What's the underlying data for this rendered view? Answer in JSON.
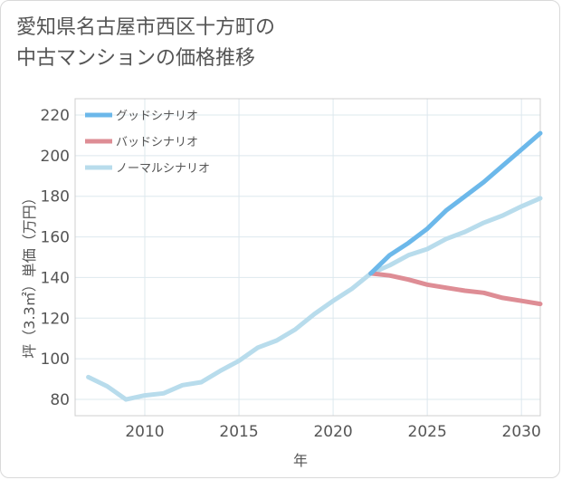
{
  "chart_data": {
    "type": "line",
    "title": "愛知県名古屋市西区十方町の\n中古マンションの価格推移",
    "xlabel": "年",
    "ylabel": "坪（3.3㎡）単価（万円）",
    "xlim": [
      2006.3,
      2031
    ],
    "ylim": [
      72,
      228
    ],
    "xticks": [
      2010,
      2015,
      2020,
      2025,
      2030
    ],
    "yticks": [
      80,
      100,
      120,
      140,
      160,
      180,
      200,
      220
    ],
    "grid": true,
    "legend_position": "top-left",
    "series": [
      {
        "name": "グッドシナリオ",
        "color": "#6cb8ea",
        "x": [
          2022,
          2023,
          2024,
          2025,
          2026,
          2027,
          2028,
          2029,
          2030,
          2031
        ],
        "values": [
          142,
          151,
          157,
          164,
          173,
          180,
          187,
          195,
          203,
          211
        ]
      },
      {
        "name": "バッドシナリオ",
        "color": "#de8d95",
        "x": [
          2022,
          2023,
          2024,
          2025,
          2026,
          2027,
          2028,
          2029,
          2030,
          2031
        ],
        "values": [
          142,
          141,
          139,
          136.5,
          135,
          133.5,
          132.5,
          130,
          128.5,
          127
        ]
      },
      {
        "name": "ノーマルシナリオ",
        "color": "#b8dcec",
        "x": [
          2007,
          2008,
          2009,
          2010,
          2011,
          2012,
          2013,
          2014,
          2015,
          2016,
          2017,
          2018,
          2019,
          2020,
          2021,
          2022,
          2023,
          2024,
          2025,
          2026,
          2027,
          2028,
          2029,
          2030,
          2031
        ],
        "values": [
          91,
          86.5,
          80,
          82,
          83,
          87,
          88.5,
          94,
          99,
          105.5,
          109,
          114.5,
          122,
          128.5,
          134.5,
          142,
          146,
          151,
          154,
          159,
          162.5,
          167,
          170.5,
          175,
          179
        ]
      }
    ]
  }
}
